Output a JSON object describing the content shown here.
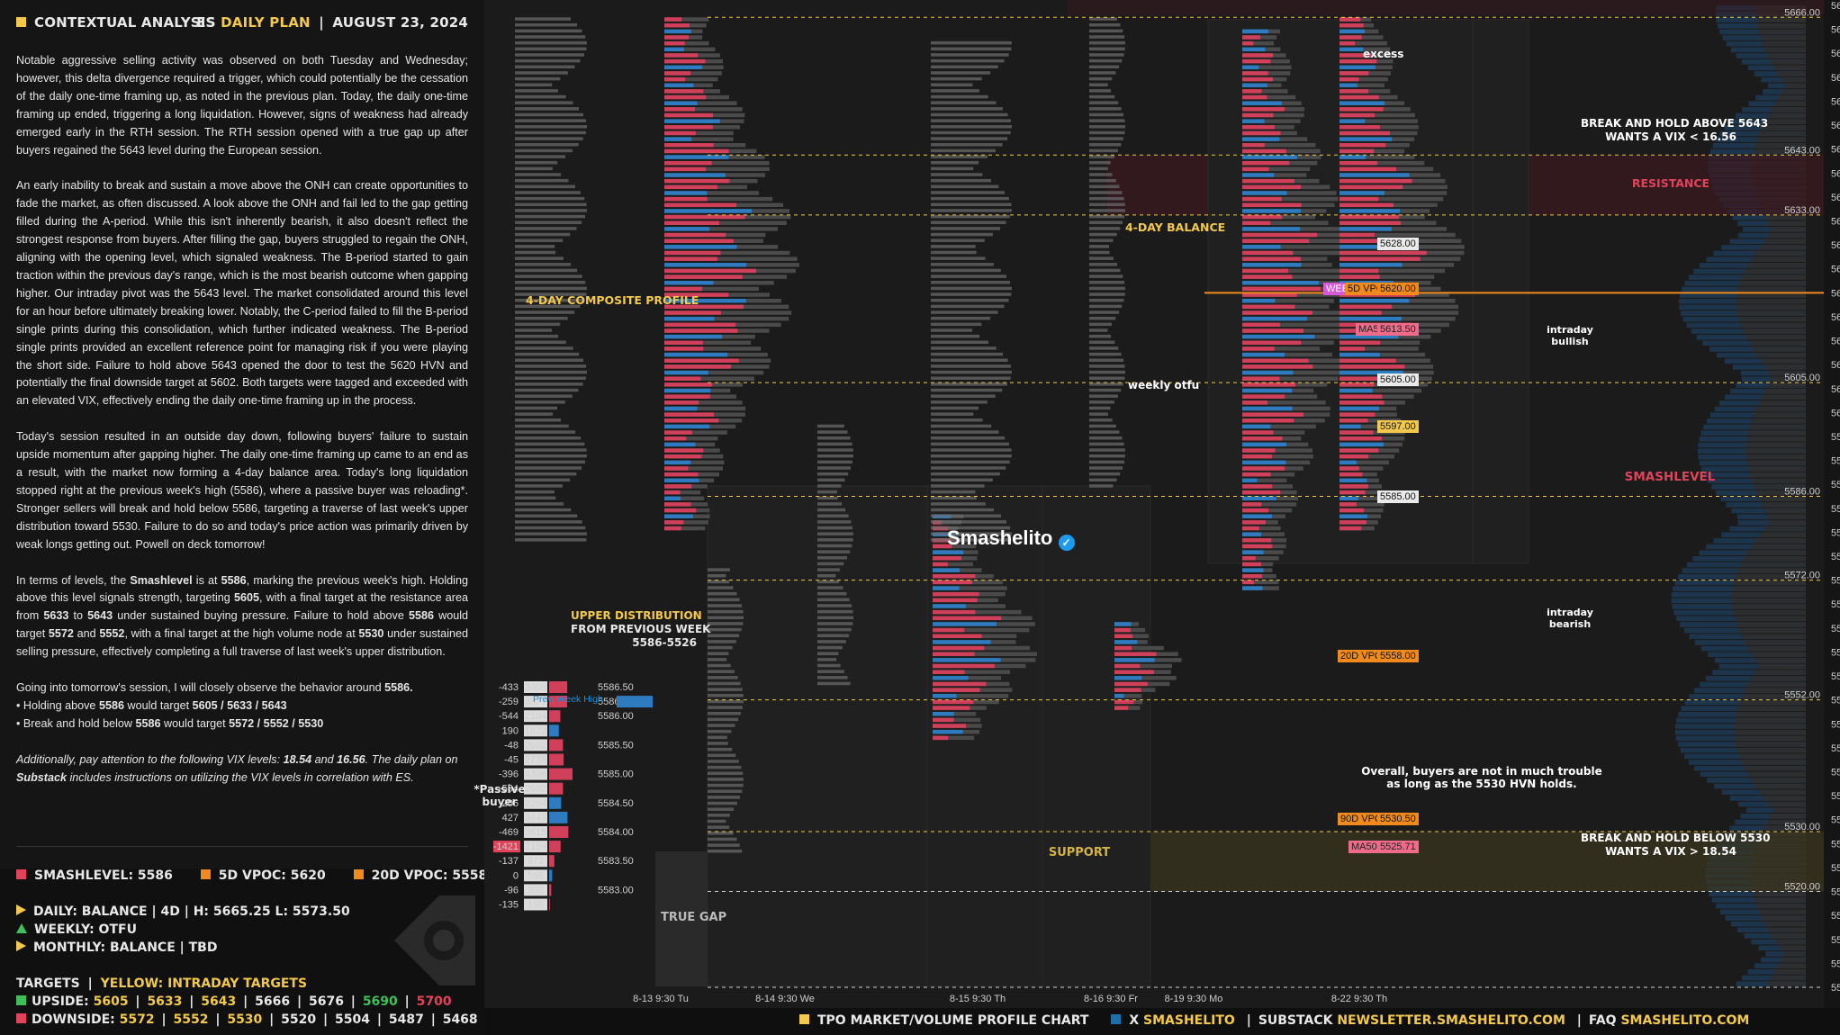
{
  "header": {
    "left_title": "CONTEXTUAL ANALYSIS",
    "instrument": "ES",
    "plan_label": "DAILY PLAN",
    "date": "AUGUST 23, 2024",
    "divider": "|"
  },
  "paragraphs": [
    "Notable aggressive selling activity was observed on both Tuesday and Wednesday; however, this delta divergence required a trigger, which could potentially be the cessation of the daily one-time framing up, as noted in the previous plan. Today, the daily one-time framing up ended, triggering a long liquidation. However, signs of weakness had already emerged early in the RTH session. The RTH session opened with a true gap up after buyers regained the 5643 level during the European session.",
    "An early inability to break and sustain a move above the ONH can create opportunities to fade the market, as often discussed. A look above the ONH and fail led to the gap getting filled during the A-period. While this isn't inherently bearish, it also doesn't reflect the strongest response from buyers. After filling the gap, buyers struggled to regain the ONH, aligning with the opening level, which signaled weakness. The B-period started to gain traction within the previous day's range, which is the most bearish outcome when gapping higher. Our intraday pivot was the 5643 level. The market consolidated around this level for an hour before ultimately breaking lower. Notably, the C-period failed to fill the B-period single prints during this consolidation, which further indicated weakness. The B-period single prints provided an excellent reference point for managing risk if you were playing the short side. Failure to hold above 5643 opened the door to test the 5620 HVN and potentially the final downside target at 5602. Both targets were tagged and exceeded with an elevated VIX, effectively ending the daily one-time framing up in the process.",
    "Today's session resulted in an outside day down, following buyers' failure to sustain upside momentum after gapping higher. The daily one-time framing up came to an end as a result, with the market now forming a 4-day balance area. Today's long liquidation stopped right at the previous week's high (5586), where a passive buyer was reloading*. Stronger sellers will break and hold below 5586, targeting a traverse of last week's upper distribution toward 5530. Failure to do so and today's price action was primarily driven by weak longs getting out. Powell on deck tomorrow!"
  ],
  "levels_paragraph": {
    "p1": "In terms of levels, the ",
    "smash": "Smashlevel",
    "p2": " is at ",
    "v5586": "5586",
    "p3": ", marking the previous week's high. Holding above this level signals strength, targeting ",
    "v5605": "5605",
    "p4": ", with a final target at the resistance area from ",
    "v5633": "5633",
    "p5": " to ",
    "v5643": "5643",
    "p6": " under sustained buying pressure. Failure to hold above ",
    "v5586b": "5586",
    "p7": " would target ",
    "v5572": "5572",
    "p8": " and ",
    "v5552": "5552",
    "p9": ", with a final target at the high volume node at ",
    "v5530": "5530",
    "p10": " under sustained selling pressure, effectively completing a full traverse of last week's upper distribution."
  },
  "tomorrow": {
    "line1a": "Going into tomorrow's session, I will closely observe the behavior around ",
    "line1b": "5586.",
    "b1a": "• Holding above ",
    "b1b": "5586",
    "b1c": " would target ",
    "b1d": "5605 / 5633 / 5643",
    "b2a": "• Break and hold below ",
    "b2b": "5586",
    "b2c": " would target ",
    "b2d": "5572 / 5552 / 5530"
  },
  "vix_note": {
    "a": "Additionally, pay attention to the following VIX levels: ",
    "b": "18.54",
    "c": " and ",
    "d": "16.56",
    "e": ". The daily plan on ",
    "f": "Substack",
    "g": " includes instructions on utilizing the VIX levels in correlation with ES."
  },
  "legend": {
    "smashlevel": "SMASHLEVEL: 5586",
    "vpoc5d": "5D VPOC: 5620",
    "vpoc20d": "20D VPOC: 5558 (5470)"
  },
  "status": {
    "daily": "DAILY: BALANCE  |  4D  |  H: 5665.25 L: 5573.50",
    "weekly": "WEEKLY: OTFU",
    "monthly": "MONTHLY: BALANCE  |  TBD"
  },
  "targets": {
    "title": "TARGETS",
    "sep": "|",
    "yellow_label": "YELLOW: INTRADAY TARGETS",
    "upside_label": "UPSIDE:",
    "upside": [
      {
        "v": "5605",
        "c": "#f2c94c"
      },
      {
        "v": "5633",
        "c": "#f2c94c"
      },
      {
        "v": "5643",
        "c": "#f2c94c"
      },
      {
        "v": "5666",
        "c": "#e8e8e8"
      },
      {
        "v": "5676",
        "c": "#e8e8e8"
      },
      {
        "v": "5690",
        "c": "#3fbf5a"
      },
      {
        "v": "5700",
        "c": "#e0435a"
      }
    ],
    "downside_label": "DOWNSIDE:",
    "downside": [
      {
        "v": "5572",
        "c": "#f2c94c"
      },
      {
        "v": "5552",
        "c": "#f2c94c"
      },
      {
        "v": "5530",
        "c": "#f2c94c"
      },
      {
        "v": "5520",
        "c": "#e8e8e8"
      },
      {
        "v": "5504",
        "c": "#e8e8e8"
      },
      {
        "v": "5487",
        "c": "#e8e8e8"
      },
      {
        "v": "5468",
        "c": "#e8e8e8"
      }
    ]
  },
  "annotations": {
    "composite": "4-DAY COMPOSITE PROFILE",
    "balance": "4-DAY BALANCE",
    "excess": "excess",
    "weekly_otfu": "weekly otfu",
    "upper_dist_1": "UPPER DISTRIBUTION",
    "upper_dist_2": "FROM PREVIOUS WEEK",
    "upper_dist_3": "5586-5526",
    "passive_1": "*Passive",
    "passive_2": "buyer",
    "true_gap": "TRUE GAP",
    "break_above_1": "BREAK AND HOLD ABOVE 5643",
    "break_above_2": "WANTS A VIX < 16.56",
    "resistance": "RESISTANCE",
    "intraday_bullish_1": "intraday",
    "intraday_bullish_2": "bullish",
    "smashlevel": "SMASHLEVEL",
    "intraday_bearish_1": "intraday",
    "intraday_bearish_2": "bearish",
    "overall_1": "Overall, buyers are not in much trouble",
    "overall_2": "as long as the 5530 HVN holds.",
    "break_below_1": "BREAK AND HOLD BELOW 5530",
    "break_below_2": "WANTS A VIX > 18.54",
    "support": "SUPPORT",
    "brand": "Smashelito",
    "prev_week_high": "Prev. Week High"
  },
  "price_labels": {
    "wee": "WEE",
    "vpoc5d": "5D VPOC",
    "v5620": "5620.00",
    "ma5": "MA5",
    "v5613": "5613.50",
    "v5605t": "5605.00",
    "v5597": "5597.00",
    "v5585t": "5585.00",
    "vpoc20d": "20D VPOC",
    "v5558": "5558.00",
    "vpoc90d": "90D VPOC",
    "v5530": "5530.50",
    "ma50": "MA50",
    "v5525": "5525.71",
    "v5628": "5628.00"
  },
  "level_tags": [
    "5666.00",
    "5643.00",
    "5633.00",
    "5605.00",
    "5586.00",
    "5572.00",
    "5552.00",
    "5530.00",
    "5520.00"
  ],
  "footer": {
    "chart_label": "TPO MARKET/VOLUME PROFILE CHART",
    "x_label": "X",
    "x_handle": "SMASHELITO",
    "substack_label": "SUBSTACK",
    "substack_url": "NEWSLETTER.SMASHELITO.COM",
    "faq_label": "FAQ",
    "faq_url": "SMASHELITO.COM",
    "sep": "|"
  },
  "chart_data": {
    "type": "bar",
    "price_axis": {
      "ticks": [
        "5668.00",
        "5664.00",
        "5660.00",
        "5656.00",
        "5652.00",
        "5648.00",
        "5644.00",
        "5640.00",
        "5636.00",
        "5632.00",
        "5628.00",
        "5624.00",
        "5620.00",
        "5616.00",
        "5612.00",
        "5608.00",
        "5604.00",
        "5600.00",
        "5596.00",
        "5592.00",
        "5588.00",
        "5584.00",
        "5580.00",
        "5576.00",
        "5572.00",
        "5568.00",
        "5564.00",
        "5560.00",
        "5556.00",
        "5552.00",
        "5548.00",
        "5544.00",
        "5540.00",
        "5536.00",
        "5532.00",
        "5528.00",
        "5524.00",
        "5520.00",
        "5516.00",
        "5512.00",
        "5508.00",
        "5504.00"
      ],
      "range": [
        5502,
        5669
      ]
    },
    "x_axis": {
      "sessions": [
        "8-13  9:30 Tu",
        "8-14  9:30 We",
        "8-15  9:30 Th",
        "8-16  9:30 Fr",
        "8-19  9:30 Mo",
        "8-22  9:30 Th"
      ]
    },
    "levels": {
      "smashlevel": 5586,
      "vpoc_5d": 5620,
      "vpoc_20d": 5558,
      "vpoc_90d": 5530.5,
      "ma5": 5613.5,
      "ma50": 5525.71,
      "resistance_zone": [
        5633,
        5643
      ],
      "support_zone": [
        5520,
        5530
      ]
    },
    "footprint": {
      "columns": [
        "delta",
        "volume",
        "price"
      ],
      "rows": [
        {
          "delta": "-433",
          "volume": "3405",
          "price": "5586.50"
        },
        {
          "delta": "-259",
          "volume": "3377",
          "price": "5586.25"
        },
        {
          "delta": "-544",
          "volume": "2104",
          "price": "5586.00"
        },
        {
          "delta": "190",
          "volume": "1822",
          "price": ""
        },
        {
          "delta": "-48",
          "volume": "2602",
          "price": "5585.50"
        },
        {
          "delta": "-45",
          "volume": "2735",
          "price": ""
        },
        {
          "delta": "-396",
          "volume": "4398",
          "price": "5585.00"
        },
        {
          "delta": "-584",
          "volume": "2602",
          "price": ""
        },
        {
          "delta": "206",
          "volume": "2264",
          "price": "5584.50"
        },
        {
          "delta": "427",
          "volume": "3447",
          "price": ""
        },
        {
          "delta": "-469",
          "volume": "3615",
          "price": "5584.00"
        },
        {
          "delta": "-1421",
          "volume": "2159",
          "price": ""
        },
        {
          "delta": "-137",
          "volume": "973",
          "price": "5583.50"
        },
        {
          "delta": "0",
          "volume": "568",
          "price": ""
        },
        {
          "delta": "-96",
          "volume": "398",
          "price": "5583.00"
        },
        {
          "delta": "-135",
          "volume": "135",
          "price": ""
        }
      ]
    }
  }
}
